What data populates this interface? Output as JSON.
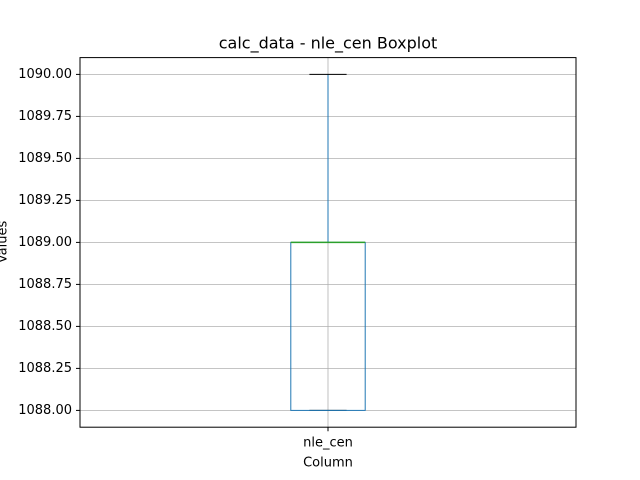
{
  "chart_data": {
    "type": "box",
    "title": "calc_data - nle_cen Boxplot",
    "x_label": "Column",
    "y_label": "Values",
    "categories": [
      "nle_cen"
    ],
    "whislo": [
      1088
    ],
    "q1": [
      1088
    ],
    "med": [
      1089
    ],
    "q3": [
      1089
    ],
    "whishi": [
      1090
    ],
    "box_color": "#1f77b4",
    "median_color": "#2ca02c",
    "cap_color": "#000000",
    "ylim": [
      1087.9,
      1090.1
    ],
    "yticks": [
      {
        "value": 1088,
        "label": "1088.00"
      },
      {
        "value": 1088.25,
        "label": "1088.25"
      },
      {
        "value": 1088.5,
        "label": "1088.50"
      },
      {
        "value": 1088.75,
        "label": "1088.75"
      },
      {
        "value": 1089,
        "label": "1089.00"
      },
      {
        "value": 1089.25,
        "label": "1089.25"
      },
      {
        "value": 1089.5,
        "label": "1089.50"
      },
      {
        "value": 1089.75,
        "label": "1089.75"
      },
      {
        "value": 1090,
        "label": "1090.00"
      }
    ],
    "grid": true
  }
}
